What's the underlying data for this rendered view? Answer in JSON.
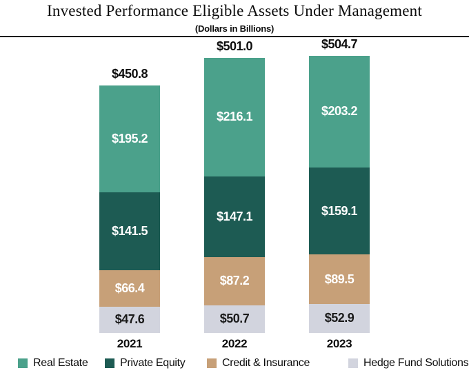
{
  "title": "Invested Performance Eligible Assets Under Management",
  "subtitle": "(Dollars in Billions)",
  "chart_data": {
    "type": "bar",
    "stacked": true,
    "title": "Invested Performance Eligible Assets Under Management",
    "subtitle": "(Dollars in Billions)",
    "unit_prefix": "$",
    "grid": false,
    "legend_position": "bottom",
    "categories": [
      "2021",
      "2022",
      "2023"
    ],
    "totals": [
      "$450.8",
      "$501.0",
      "$504.7"
    ],
    "series": [
      {
        "name": "Real Estate",
        "color": "#4BA18B",
        "label_color": "#ffffff",
        "values": [
          195.2,
          216.1,
          203.2
        ]
      },
      {
        "name": "Private Equity",
        "color": "#1D5B53",
        "label_color": "#ffffff",
        "values": [
          141.5,
          147.1,
          159.1
        ]
      },
      {
        "name": "Credit & Insurance",
        "color": "#C7A078",
        "label_color": "#ffffff",
        "values": [
          66.4,
          87.2,
          89.5
        ]
      },
      {
        "name": "Hedge Fund Solutions",
        "color": "#D2D4DE",
        "label_color": "#1a1a1a",
        "values": [
          47.6,
          50.7,
          52.9
        ]
      }
    ]
  }
}
